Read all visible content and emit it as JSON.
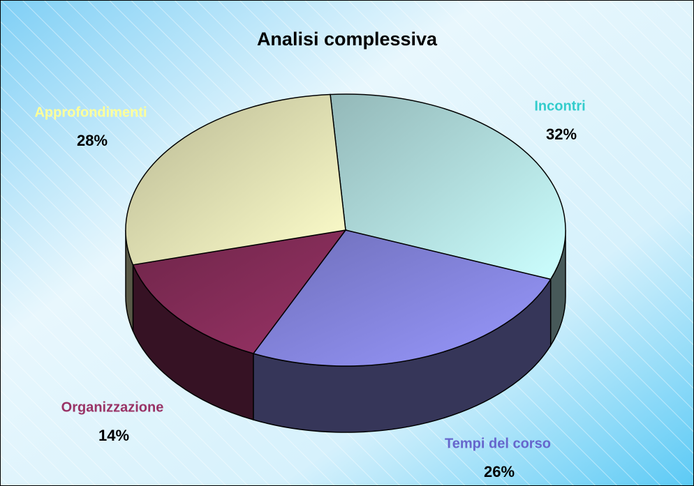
{
  "chart_data": {
    "type": "pie",
    "title": "Analisi complessiva",
    "categories": [
      "Incontri",
      "Tempi del corso",
      "Organizzazione",
      "Approfondimenti"
    ],
    "values": [
      32,
      26,
      14,
      28
    ],
    "value_labels": [
      "32%",
      "26%",
      "14%",
      "28%"
    ],
    "colors": [
      "#ccffff",
      "#9999ff",
      "#993366",
      "#ffffcc"
    ],
    "label_colors": [
      "#33cccc",
      "#6666cc",
      "#993366",
      "#ffff99"
    ]
  }
}
